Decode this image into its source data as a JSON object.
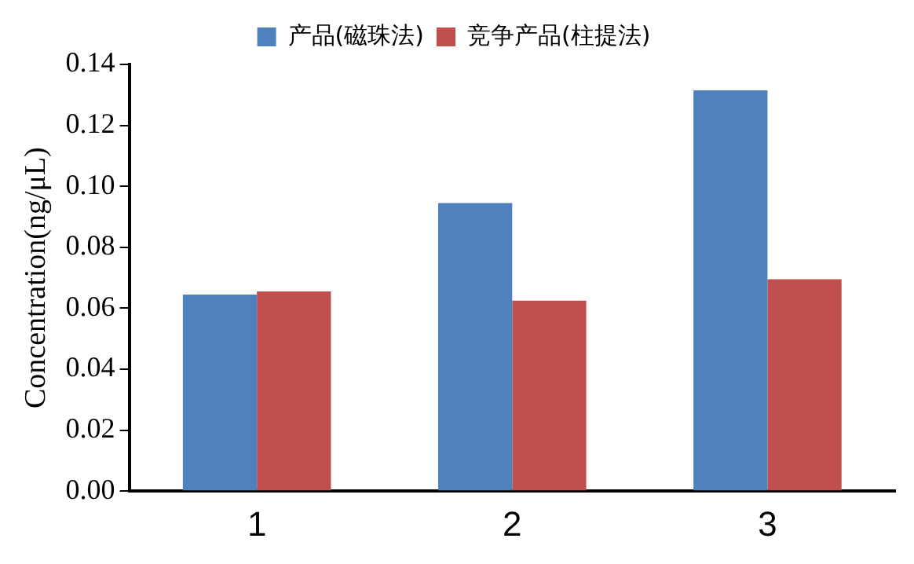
{
  "chart_data": {
    "type": "bar",
    "ylabel": "Concentration(ng/μL)",
    "categories": [
      "1",
      "2",
      "3"
    ],
    "series": [
      {
        "name": "产品(磁珠法)",
        "color": "#4f81bd",
        "values": [
          0.0645,
          0.0945,
          0.1315
        ]
      },
      {
        "name": "竞争产品(柱提法)",
        "color": "#c0504d",
        "values": [
          0.0655,
          0.0625,
          0.0695
        ]
      }
    ],
    "ylim": [
      0,
      0.14
    ],
    "yticks": [
      {
        "value": 0,
        "label": "0.00"
      },
      {
        "value": 0.02,
        "label": "0.02"
      },
      {
        "value": 0.04,
        "label": "0.04"
      },
      {
        "value": 0.06,
        "label": "0.06"
      },
      {
        "value": 0.08,
        "label": "0.08"
      },
      {
        "value": 0.1,
        "label": "0.10"
      },
      {
        "value": 0.12,
        "label": "0.12"
      },
      {
        "value": 0.14,
        "label": "0.14"
      }
    ],
    "grid": false,
    "legend": "top"
  }
}
